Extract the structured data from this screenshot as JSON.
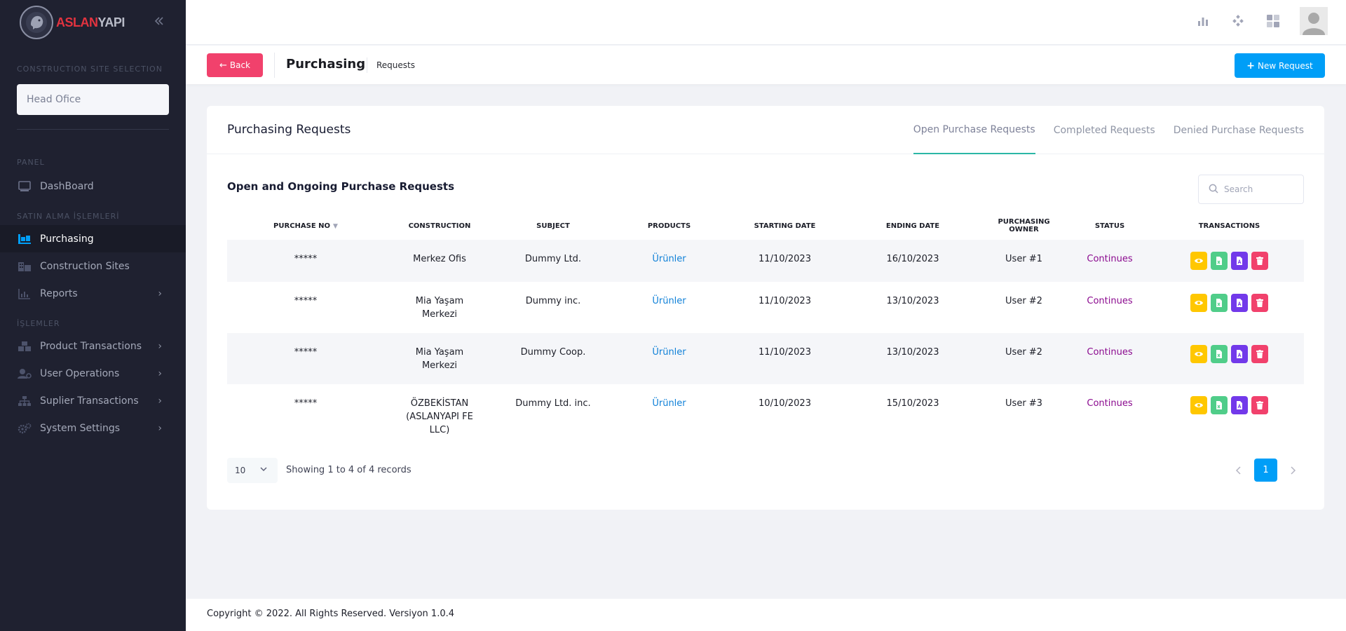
{
  "brand": {
    "name_part1": "ASLAN",
    "name_part2": "YAPI"
  },
  "sidebar": {
    "site_section_title": "CONSTRUCTION SITE SELECTION",
    "site_selected": "Head Ofice",
    "panel_title": "PANEL",
    "purchase_title": "SATIN ALMA İŞLEMLERİ",
    "ops_title": "İŞLEMLER",
    "items": [
      {
        "label": "DashBoard",
        "icon": "monitor-icon"
      },
      {
        "label": "Purchasing",
        "icon": "truck-icon",
        "active": true
      },
      {
        "label": "Construction Sites",
        "icon": "building-icon"
      },
      {
        "label": "Reports",
        "icon": "bar-chart-icon",
        "submenu": true
      },
      {
        "label": "Product Transactions",
        "icon": "boxes-icon",
        "submenu": true
      },
      {
        "label": "User Operations",
        "icon": "user-gear-icon",
        "submenu": true
      },
      {
        "label": "Suplier Transactions",
        "icon": "sitemap-icon",
        "submenu": true
      },
      {
        "label": "System Settings",
        "icon": "gears-icon",
        "submenu": true
      }
    ]
  },
  "subheader": {
    "back_label": "Back",
    "title": "Purchasing",
    "breadcrumb": "Requests",
    "new_label": "New Request"
  },
  "card": {
    "title": "Purchasing Requests",
    "tabs": [
      "Open Purchase Requests",
      "Completed Requests",
      "Denied Purchase Requests"
    ],
    "active_tab": 0,
    "section_title": "Open and Ongoing Purchase Requests",
    "search_placeholder": "Search"
  },
  "table": {
    "columns": [
      "Purchase No",
      "Construction",
      "Subject",
      "Products",
      "Starting Date",
      "Ending Date",
      "Purchasing Owner",
      "Status",
      "Transactions"
    ],
    "rows": [
      {
        "no": "*****",
        "construction": "Merkez Ofis",
        "subject": "Dummy Ltd.",
        "products": "Ürünler",
        "start": "11/10/2023",
        "end": "16/10/2023",
        "owner": "User #1",
        "status": "Continues"
      },
      {
        "no": "*****",
        "construction": "Mia Yaşam Merkezi",
        "subject": "Dummy inc.",
        "products": "Ürünler",
        "start": "11/10/2023",
        "end": "13/10/2023",
        "owner": "User #2",
        "status": "Continues"
      },
      {
        "no": "*****",
        "construction": "Mia Yaşam Merkezi",
        "subject": "Dummy Coop.",
        "products": "Ürünler",
        "start": "11/10/2023",
        "end": "13/10/2023",
        "owner": "User #2",
        "status": "Continues"
      },
      {
        "no": "*****",
        "construction": "ÖZBEKİSTAN (ASLANYAPI FE LLC)",
        "subject": "Dummy Ltd. inc.",
        "products": "Ürünler",
        "start": "10/10/2023",
        "end": "15/10/2023",
        "owner": "User #3",
        "status": "Continues"
      }
    ],
    "action_colors": {
      "view": "#ffc700",
      "excel": "#50cd89",
      "pdf": "#7239ea",
      "delete": "#f1416c"
    }
  },
  "pagination": {
    "page_length": "10",
    "info": "Showing 1 to 4 of 4 records",
    "current_page": "1"
  },
  "footer": {
    "text": "Copyright © 2022. All Rights Reserved. Versiyon 1.0.4"
  }
}
